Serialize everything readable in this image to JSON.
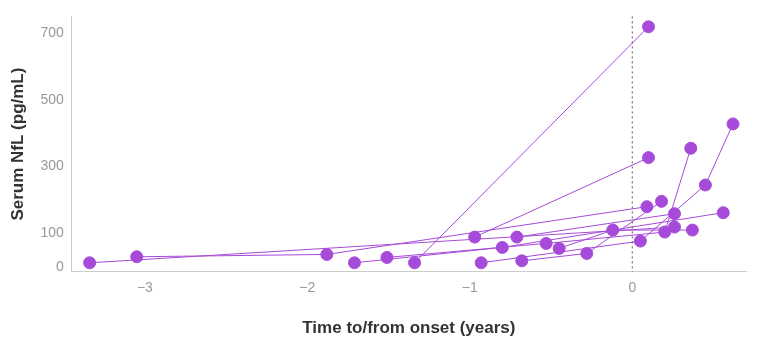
{
  "chart_data": {
    "type": "line",
    "xlabel": "Time to/from onset (years)",
    "ylabel": "Serum NfL (pg/mL)",
    "color": "#a64bd9",
    "marker": "circle",
    "line_style": "solid",
    "grid": false,
    "xlim": [
      -3.45,
      0.7
    ],
    "ylim": [
      -15,
      750
    ],
    "xticks": [
      {
        "value": -3,
        "label": "−3"
      },
      {
        "value": -2,
        "label": "−2"
      },
      {
        "value": -1,
        "label": "−1"
      },
      0
    ],
    "yticks": [
      0,
      100,
      300,
      500,
      700
    ],
    "reference_lines": [
      {
        "x": 0,
        "line_style": "dotted"
      }
    ],
    "series": [
      {
        "x": [
          -3.34,
          0.26
        ],
        "values": [
          12,
          119
        ]
      },
      {
        "x": [
          -3.05,
          -1.88,
          0.09
        ],
        "values": [
          30,
          37,
          180
        ]
      },
      {
        "x": [
          -1.71,
          -0.8,
          0.56
        ],
        "values": [
          12,
          58,
          162
        ]
      },
      {
        "x": [
          -1.51,
          -0.53,
          0.2,
          0.36
        ],
        "values": [
          28,
          70,
          104,
          355
        ]
      },
      {
        "x": [
          -1.34,
          0.1
        ],
        "values": [
          12,
          719
        ]
      },
      {
        "x": [
          -0.97,
          0.1
        ],
        "values": [
          89,
          327
        ]
      },
      {
        "x": [
          -0.71,
          0.26
        ],
        "values": [
          89,
          159
        ]
      },
      {
        "x": [
          -0.68,
          -0.28,
          0.18
        ],
        "values": [
          18,
          40,
          196
        ]
      },
      {
        "x": [
          -0.45,
          -0.12,
          0.37
        ],
        "values": [
          55,
          110,
          110
        ]
      },
      {
        "x": [
          -0.93,
          0.05,
          0.45,
          0.62
        ],
        "values": [
          12,
          77,
          245,
          428
        ]
      }
    ]
  }
}
